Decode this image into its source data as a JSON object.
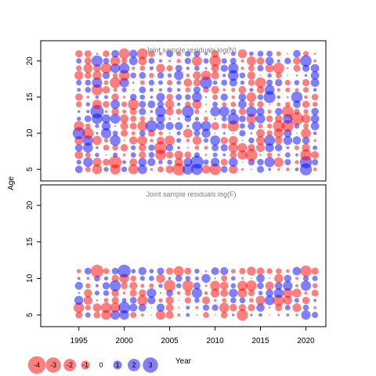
{
  "chart_data": [
    {
      "type": "scatter",
      "encoding": "bubble",
      "title": "Joint sample residuals log(N)",
      "xlabel": "Year",
      "ylabel": "Age",
      "xlim": [
        1990.8,
        2022.2
      ],
      "ylim": [
        3.4,
        22.8
      ],
      "xticks": [
        1995,
        2000,
        2005,
        2010,
        2015,
        2020
      ],
      "yticks": [
        5,
        10,
        15,
        20
      ],
      "years": [
        1995,
        2021
      ],
      "ages": [
        5,
        21
      ],
      "positive_color": "#0000ff",
      "negative_color": "#ff0000"
    },
    {
      "type": "scatter",
      "encoding": "bubble",
      "title": "Joint sample residuals log(F)",
      "xlabel": "Year",
      "ylabel": "Age",
      "xlim": [
        1990.8,
        2022.2
      ],
      "ylim": [
        3.4,
        22.8
      ],
      "xticks": [
        1995,
        2000,
        2005,
        2010,
        2015,
        2020
      ],
      "yticks": [
        5,
        10,
        15,
        20
      ],
      "years": [
        1995,
        2021
      ],
      "ages": [
        5,
        11
      ],
      "positive_color": "#0000ff",
      "negative_color": "#ff0000"
    }
  ],
  "legend": {
    "placement": "bottom-left",
    "entries": [
      {
        "label": "-4",
        "value": -4
      },
      {
        "label": "-3",
        "value": -3
      },
      {
        "label": "-2",
        "value": -2
      },
      {
        "label": "-1",
        "value": -1
      },
      {
        "label": "0",
        "value": 0
      },
      {
        "label": "1",
        "value": 1
      },
      {
        "label": "2",
        "value": 2
      },
      {
        "label": "3",
        "value": 3
      }
    ]
  }
}
